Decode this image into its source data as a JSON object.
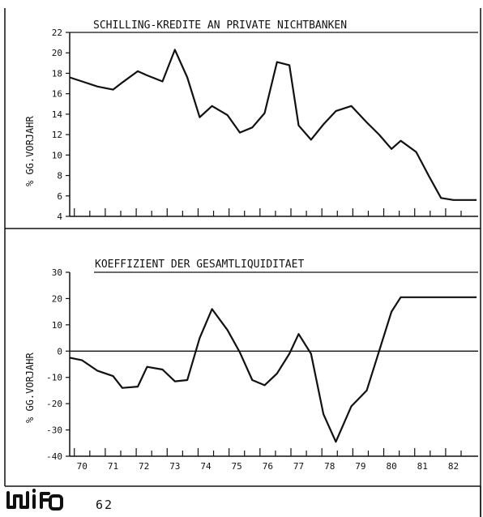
{
  "chart_data": [
    {
      "type": "line",
      "title": "SCHILLING-KREDITE AN PRIVATE NICHTBANKEN",
      "ylabel": "% GG.VORJAHR",
      "ylim": [
        4,
        22
      ],
      "yticks": [
        4,
        6,
        8,
        10,
        12,
        14,
        16,
        18,
        20,
        22
      ],
      "xlim": [
        69.6,
        82.8
      ],
      "grid": false,
      "series": [
        {
          "x": [
            69.6,
            70.0,
            70.5,
            71.0,
            71.3,
            71.8,
            72.1,
            72.6,
            73.0,
            73.4,
            73.8,
            74.2,
            74.7,
            75.1,
            75.5,
            75.9,
            76.3,
            76.7,
            77.0,
            77.4,
            77.8,
            78.2,
            78.7,
            79.2,
            79.6,
            80.0,
            80.3,
            80.8,
            81.2,
            81.6,
            82.0,
            82.4,
            82.75
          ],
          "y": [
            17.6,
            17.2,
            16.7,
            16.4,
            17.1,
            18.2,
            17.8,
            17.2,
            20.3,
            17.6,
            13.7,
            14.8,
            13.9,
            12.2,
            12.7,
            14.1,
            19.1,
            18.8,
            12.9,
            11.5,
            13.0,
            14.3,
            14.8,
            13.2,
            12.0,
            10.6,
            11.4,
            10.3,
            8.0,
            5.8,
            5.6,
            5.6,
            5.6
          ]
        }
      ]
    },
    {
      "type": "line",
      "title": "KOEFFIZIENT DER GESAMTLIQUIDITAET",
      "ylabel": "% GG.VORJAHR",
      "ylim": [
        -40,
        30
      ],
      "yticks": [
        -40,
        -30,
        -20,
        -10,
        0,
        10,
        20,
        30
      ],
      "xlim": [
        69.6,
        82.8
      ],
      "xticks": [
        "70",
        "71",
        "72",
        "73",
        "74",
        "75",
        "76",
        "77",
        "78",
        "79",
        "80",
        "81",
        "82"
      ],
      "grid": false,
      "zero_line": true,
      "series": [
        {
          "x": [
            69.6,
            70.0,
            70.5,
            71.0,
            71.3,
            71.8,
            72.1,
            72.6,
            73.0,
            73.4,
            73.8,
            74.2,
            74.7,
            75.1,
            75.5,
            75.9,
            76.3,
            76.7,
            77.0,
            77.4,
            77.8,
            78.2,
            78.7,
            79.2,
            79.6,
            80.0,
            80.3,
            80.8,
            81.2,
            81.6,
            82.0,
            82.4,
            82.75
          ],
          "y": [
            -2.5,
            -3.5,
            -7.5,
            -9.5,
            -14.0,
            -13.5,
            -6.0,
            -7.0,
            -11.5,
            -11.0,
            5.0,
            16.0,
            8.0,
            -0.5,
            -11.0,
            -13.0,
            -8.5,
            -1.0,
            6.5,
            -1.0,
            -24.0,
            -34.5,
            -21.0,
            -15.0,
            0.0,
            15.0,
            20.5,
            20.5,
            20.5,
            20.5,
            20.5,
            20.5,
            20.5
          ]
        }
      ]
    }
  ],
  "footer": {
    "logo_text": "wifo",
    "page_number": "62"
  }
}
